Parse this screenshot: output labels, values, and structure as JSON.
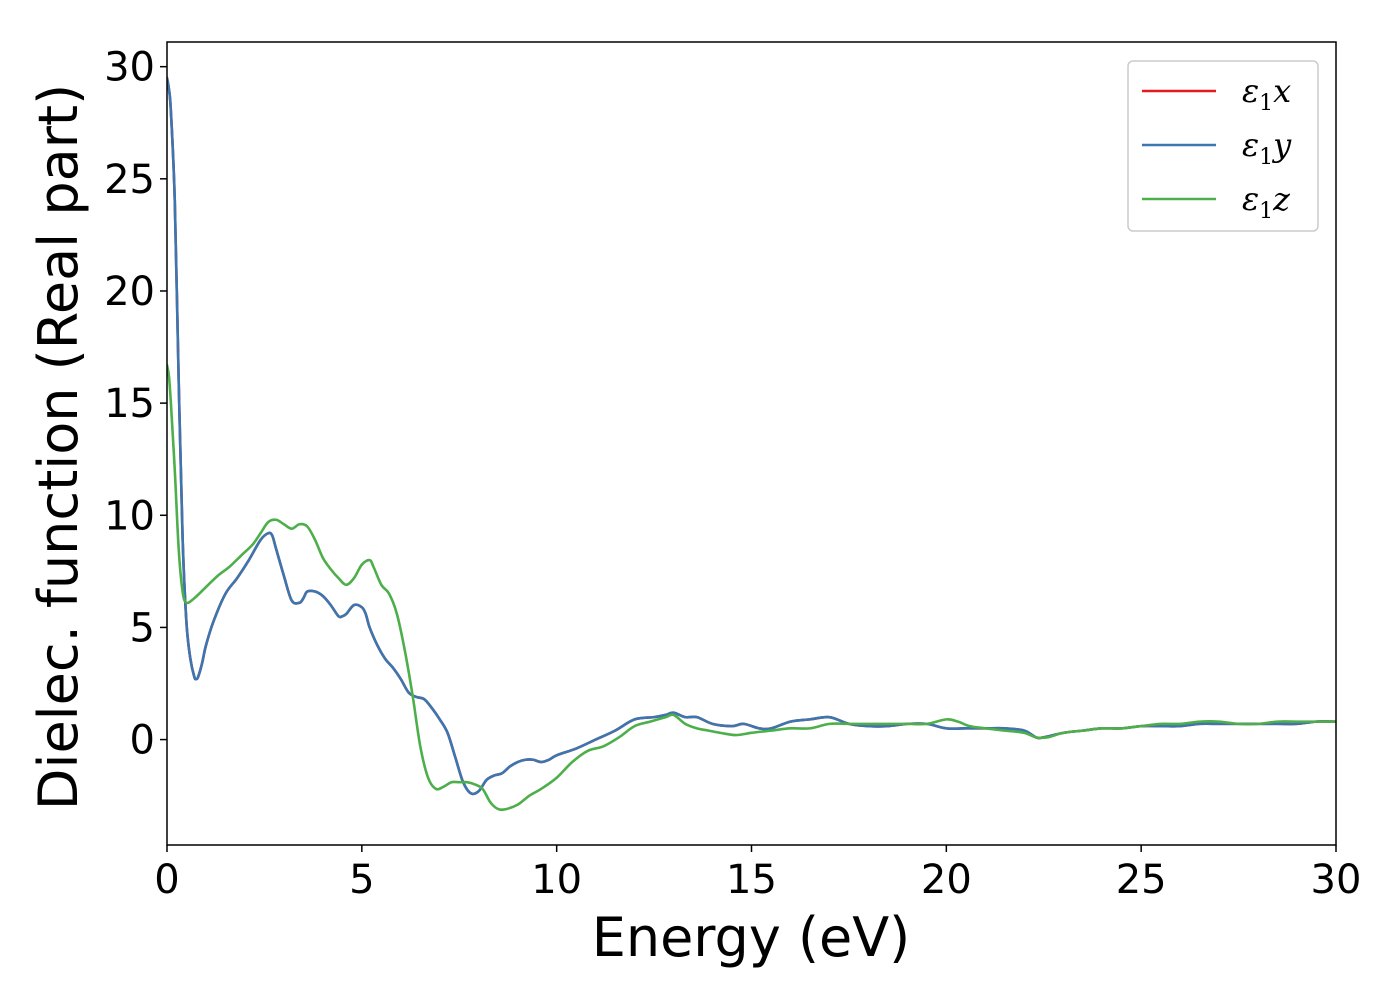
{
  "chart_data": {
    "type": "line",
    "xlabel": "Energy (eV)",
    "ylabel": "Dielec. function (Real part)",
    "xlim": [
      0,
      30
    ],
    "ylim": [
      -4.7,
      31.1
    ],
    "xticks": [
      0,
      5,
      10,
      15,
      20,
      25,
      30
    ],
    "yticks": [
      0,
      5,
      10,
      15,
      20,
      25,
      30
    ],
    "grid": false,
    "legend_position": "top-right",
    "series": [
      {
        "name": "ε1x",
        "legend_symbol": "ε",
        "legend_sub": "1",
        "legend_var": "x",
        "color": "#e41a1c",
        "x": [
          0,
          0.05,
          0.1,
          0.2,
          0.3,
          0.4,
          0.5,
          0.6,
          0.7,
          0.75,
          0.8,
          0.9,
          1.0,
          1.2,
          1.5,
          1.8,
          2.1,
          2.4,
          2.6,
          2.7,
          2.8,
          3.0,
          3.2,
          3.4,
          3.5,
          3.6,
          3.8,
          4.0,
          4.2,
          4.4,
          4.5,
          4.6,
          4.8,
          5.0,
          5.1,
          5.2,
          5.4,
          5.6,
          5.8,
          6.0,
          6.2,
          6.4,
          6.6,
          6.8,
          7.0,
          7.2,
          7.4,
          7.6,
          7.8,
          8.0,
          8.2,
          8.4,
          8.6,
          8.8,
          9.0,
          9.2,
          9.4,
          9.6,
          9.8,
          10.0,
          10.5,
          11.0,
          11.5,
          12.0,
          12.5,
          12.8,
          13.0,
          13.3,
          13.6,
          14.0,
          14.5,
          14.8,
          15.2,
          15.5,
          16.0,
          16.5,
          17.0,
          17.5,
          18.0,
          18.5,
          19.0,
          19.5,
          20.0,
          20.5,
          21.0,
          21.5,
          22.0,
          22.3,
          22.5,
          23.0,
          23.5,
          24.0,
          24.5,
          25.0,
          25.5,
          26.0,
          26.5,
          27.0,
          27.5,
          28.0,
          28.5,
          29.0,
          29.5,
          30.0
        ],
        "y": [
          29.5,
          29.0,
          28.0,
          24.0,
          16.0,
          9.0,
          5.2,
          3.6,
          2.8,
          2.7,
          2.8,
          3.4,
          4.2,
          5.3,
          6.5,
          7.2,
          8.0,
          8.9,
          9.2,
          9.1,
          8.5,
          7.3,
          6.2,
          6.1,
          6.3,
          6.6,
          6.6,
          6.4,
          6.0,
          5.5,
          5.5,
          5.6,
          6.0,
          5.9,
          5.6,
          5.0,
          4.2,
          3.6,
          3.2,
          2.7,
          2.1,
          1.9,
          1.8,
          1.4,
          0.9,
          0.3,
          -0.8,
          -1.9,
          -2.4,
          -2.3,
          -1.8,
          -1.6,
          -1.5,
          -1.2,
          -1.0,
          -0.9,
          -0.9,
          -1.0,
          -0.9,
          -0.7,
          -0.4,
          0.0,
          0.4,
          0.9,
          1.0,
          1.1,
          1.2,
          1.0,
          1.0,
          0.7,
          0.6,
          0.7,
          0.5,
          0.5,
          0.8,
          0.9,
          1.0,
          0.7,
          0.6,
          0.6,
          0.7,
          0.7,
          0.5,
          0.5,
          0.5,
          0.5,
          0.4,
          0.1,
          0.1,
          0.3,
          0.4,
          0.5,
          0.5,
          0.6,
          0.6,
          0.6,
          0.7,
          0.7,
          0.7,
          0.7,
          0.7,
          0.7,
          0.8,
          0.8
        ]
      },
      {
        "name": "ε1y",
        "legend_symbol": "ε",
        "legend_sub": "1",
        "legend_var": "y",
        "color": "#3a76b0",
        "x": [
          0,
          0.05,
          0.1,
          0.2,
          0.3,
          0.4,
          0.5,
          0.6,
          0.7,
          0.75,
          0.8,
          0.9,
          1.0,
          1.2,
          1.5,
          1.8,
          2.1,
          2.4,
          2.6,
          2.7,
          2.8,
          3.0,
          3.2,
          3.4,
          3.5,
          3.6,
          3.8,
          4.0,
          4.2,
          4.4,
          4.5,
          4.6,
          4.8,
          5.0,
          5.1,
          5.2,
          5.4,
          5.6,
          5.8,
          6.0,
          6.2,
          6.4,
          6.6,
          6.8,
          7.0,
          7.2,
          7.4,
          7.6,
          7.8,
          8.0,
          8.2,
          8.4,
          8.6,
          8.8,
          9.0,
          9.2,
          9.4,
          9.6,
          9.8,
          10.0,
          10.5,
          11.0,
          11.5,
          12.0,
          12.5,
          12.8,
          13.0,
          13.3,
          13.6,
          14.0,
          14.5,
          14.8,
          15.2,
          15.5,
          16.0,
          16.5,
          17.0,
          17.5,
          18.0,
          18.5,
          19.0,
          19.5,
          20.0,
          20.5,
          21.0,
          21.5,
          22.0,
          22.3,
          22.5,
          23.0,
          23.5,
          24.0,
          24.5,
          25.0,
          25.5,
          26.0,
          26.5,
          27.0,
          27.5,
          28.0,
          28.5,
          29.0,
          29.5,
          30.0
        ],
        "y": [
          29.5,
          29.0,
          28.0,
          24.0,
          16.0,
          9.0,
          5.2,
          3.6,
          2.8,
          2.7,
          2.8,
          3.4,
          4.2,
          5.3,
          6.5,
          7.2,
          8.0,
          8.9,
          9.2,
          9.1,
          8.5,
          7.3,
          6.2,
          6.1,
          6.3,
          6.6,
          6.6,
          6.4,
          6.0,
          5.5,
          5.5,
          5.6,
          6.0,
          5.9,
          5.6,
          5.0,
          4.2,
          3.6,
          3.2,
          2.7,
          2.1,
          1.9,
          1.8,
          1.4,
          0.9,
          0.3,
          -0.8,
          -1.9,
          -2.4,
          -2.3,
          -1.8,
          -1.6,
          -1.5,
          -1.2,
          -1.0,
          -0.9,
          -0.9,
          -1.0,
          -0.9,
          -0.7,
          -0.4,
          0.0,
          0.4,
          0.9,
          1.0,
          1.1,
          1.2,
          1.0,
          1.0,
          0.7,
          0.6,
          0.7,
          0.5,
          0.5,
          0.8,
          0.9,
          1.0,
          0.7,
          0.6,
          0.6,
          0.7,
          0.7,
          0.5,
          0.5,
          0.5,
          0.5,
          0.4,
          0.1,
          0.1,
          0.3,
          0.4,
          0.5,
          0.5,
          0.6,
          0.6,
          0.6,
          0.7,
          0.7,
          0.7,
          0.7,
          0.7,
          0.7,
          0.8,
          0.8
        ]
      },
      {
        "name": "ε1z",
        "legend_symbol": "ε",
        "legend_sub": "1",
        "legend_var": "z",
        "color": "#4daf4a",
        "x": [
          0,
          0.05,
          0.1,
          0.2,
          0.3,
          0.4,
          0.5,
          0.7,
          1.0,
          1.3,
          1.6,
          1.9,
          2.2,
          2.4,
          2.6,
          2.8,
          3.0,
          3.2,
          3.4,
          3.6,
          3.8,
          4.0,
          4.2,
          4.4,
          4.6,
          4.8,
          5.0,
          5.2,
          5.3,
          5.5,
          5.7,
          5.9,
          6.1,
          6.3,
          6.5,
          6.7,
          6.9,
          7.1,
          7.3,
          7.5,
          7.7,
          7.9,
          8.1,
          8.3,
          8.5,
          8.7,
          9.0,
          9.3,
          9.6,
          10.0,
          10.4,
          10.8,
          11.2,
          11.6,
          12.0,
          12.4,
          12.8,
          13.0,
          13.3,
          13.6,
          13.9,
          14.2,
          14.6,
          15.0,
          15.5,
          16.0,
          16.5,
          17.0,
          17.5,
          18.0,
          18.5,
          19.0,
          19.5,
          20.0,
          20.3,
          20.6,
          21.0,
          21.5,
          22.0,
          22.3,
          22.6,
          23.0,
          23.5,
          24.0,
          24.5,
          25.0,
          25.5,
          26.0,
          26.5,
          27.0,
          27.5,
          28.0,
          28.5,
          29.0,
          29.5,
          30.0
        ],
        "y": [
          16.7,
          16.2,
          15.0,
          12.0,
          8.5,
          6.6,
          6.1,
          6.3,
          6.8,
          7.3,
          7.7,
          8.2,
          8.7,
          9.2,
          9.7,
          9.8,
          9.6,
          9.4,
          9.6,
          9.5,
          8.9,
          8.1,
          7.6,
          7.2,
          6.9,
          7.2,
          7.8,
          8.0,
          7.7,
          6.9,
          6.5,
          5.6,
          4.0,
          2.0,
          -0.3,
          -1.7,
          -2.2,
          -2.1,
          -1.9,
          -1.9,
          -1.9,
          -2.0,
          -2.2,
          -2.8,
          -3.1,
          -3.1,
          -2.9,
          -2.5,
          -2.2,
          -1.7,
          -1.0,
          -0.5,
          -0.3,
          0.1,
          0.6,
          0.8,
          1.0,
          1.1,
          0.7,
          0.5,
          0.4,
          0.3,
          0.2,
          0.3,
          0.4,
          0.5,
          0.5,
          0.7,
          0.7,
          0.7,
          0.7,
          0.7,
          0.7,
          0.9,
          0.8,
          0.6,
          0.5,
          0.4,
          0.3,
          0.1,
          0.1,
          0.3,
          0.4,
          0.5,
          0.5,
          0.6,
          0.7,
          0.7,
          0.8,
          0.8,
          0.7,
          0.7,
          0.8,
          0.8,
          0.8,
          0.8
        ]
      }
    ]
  }
}
